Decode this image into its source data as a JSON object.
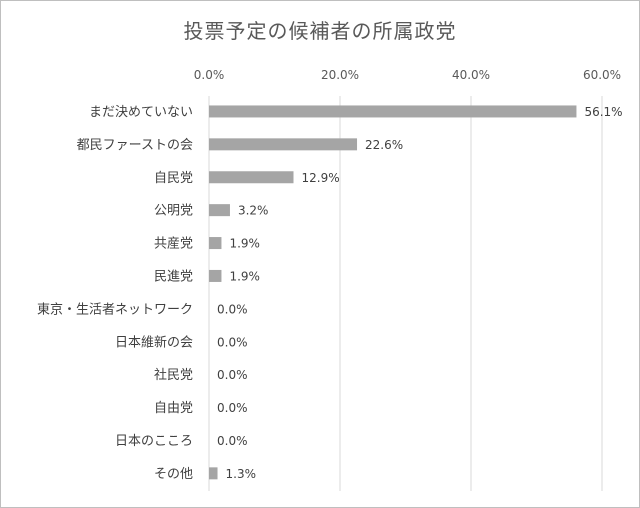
{
  "chart_data": {
    "type": "bar",
    "orientation": "horizontal",
    "title": "投票予定の候補者の所属政党",
    "xlabel": "",
    "ylabel": "",
    "xlim": [
      0,
      60
    ],
    "x_ticks": [
      0,
      20,
      40,
      60
    ],
    "x_tick_labels": [
      "0.0%",
      "20.0%",
      "40.0%",
      "60.0%"
    ],
    "axis_position": "top",
    "grid": true,
    "bar_color": "#a5a5a5",
    "categories": [
      "まだ決めていない",
      "都民ファーストの会",
      "自民党",
      "公明党",
      "共産党",
      "民進党",
      "東京・生活者ネットワーク",
      "日本維新の会",
      "社民党",
      "自由党",
      "日本のこころ",
      "その他"
    ],
    "values": [
      56.1,
      22.6,
      12.9,
      3.2,
      1.9,
      1.9,
      0.0,
      0.0,
      0.0,
      0.0,
      0.0,
      1.3
    ],
    "data_labels": [
      "56.1%",
      "22.6%",
      "12.9%",
      "3.2%",
      "1.9%",
      "1.9%",
      "0.0%",
      "0.0%",
      "0.0%",
      "0.0%",
      "0.0%",
      "1.3%"
    ]
  }
}
